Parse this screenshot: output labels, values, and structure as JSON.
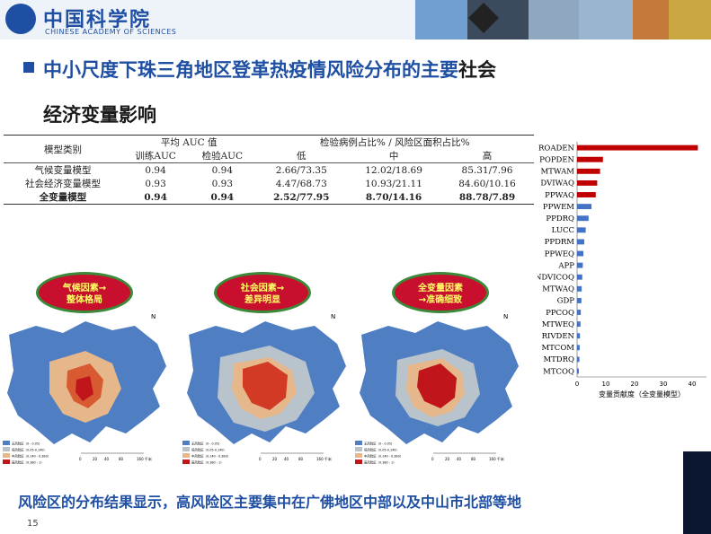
{
  "header": {
    "logo_cn": "中国科学院",
    "logo_en": "CHINESE ACADEMY OF SCIENCES"
  },
  "title": {
    "line1_blue": "中小尺度下珠三角地区登革热疫情风险分布的主要",
    "line1_black": "社会",
    "line2": "经济变量影响"
  },
  "table": {
    "header_model": "模型类别",
    "header_auc": "平均 AUC 值",
    "header_cases": "检验病例占比% / 风险区面积占比%",
    "sub_train": "训练AUC",
    "sub_test": "检验AUC",
    "sub_low": "低",
    "sub_mid": "中",
    "sub_high": "高",
    "rows": [
      {
        "name": "气候变量模型",
        "train": "0.94",
        "test": "0.94",
        "low": "2.66/73.35",
        "mid": "12.02/18.69",
        "high": "85.31/7.96"
      },
      {
        "name": "社会经济变量模型",
        "train": "0.93",
        "test": "0.93",
        "low": "4.47/68.73",
        "mid": "10.93/21.11",
        "high": "84.60/10.16"
      },
      {
        "name": "全变量模型",
        "train": "0.94",
        "test": "0.94",
        "low": "2.52/77.95",
        "mid": "8.70/14.16",
        "high": "88.78/7.89"
      }
    ]
  },
  "callouts": [
    {
      "line1": "气候因素→",
      "line2": "整体格局"
    },
    {
      "line1": "社会因素→",
      "line2": "差异明显"
    },
    {
      "line1": "全变量因素",
      "line2": "→准确细致"
    }
  ],
  "map_legend": [
    "无风险区（0 - 0.05）",
    "低风险区（0.05-0.140）",
    "中风险区（0.140 - 0.380）",
    "高风险区（0.380 - 1）"
  ],
  "map_scale": [
    "0",
    "20",
    "40",
    "80",
    "160 千米"
  ],
  "map_north": "N",
  "chart_data": {
    "type": "bar",
    "orientation": "horizontal",
    "categories": [
      "ROADEN",
      "POPDEN",
      "MTWAM",
      "DVIWAQ",
      "PPWAQ",
      "PPWEM",
      "PPDRQ",
      "LUCC",
      "PPDRM",
      "PPWEQ",
      "APP",
      "NDVICOQ",
      "MTWAQ",
      "GDP",
      "PPCOQ",
      "MTWEQ",
      "RIVDEN",
      "MTCOM",
      "MTDRQ",
      "MTCOQ"
    ],
    "values": [
      42,
      9,
      8,
      7,
      6.5,
      5,
      4,
      3,
      2.5,
      2.2,
      2,
      1.8,
      1.6,
      1.5,
      1.3,
      1.2,
      1.0,
      0.9,
      0.8,
      0.6
    ],
    "colors": [
      "#c00000",
      "#c00000",
      "#c00000",
      "#c00000",
      "#c00000",
      "#4472c4",
      "#4472c4",
      "#4472c4",
      "#4472c4",
      "#4472c4",
      "#4472c4",
      "#4472c4",
      "#4472c4",
      "#4472c4",
      "#4472c4",
      "#4472c4",
      "#4472c4",
      "#4472c4",
      "#4472c4",
      "#4472c4"
    ],
    "xticks": [
      "0",
      "10",
      "20",
      "30",
      "40"
    ],
    "xlim": [
      0,
      45
    ],
    "xlabel": "变量贡献度（全变量模型）"
  },
  "bottom_text": "风险区的分布结果显示，高风险区主要集中在广佛地区中部以及中山市北部等地",
  "page_number": "15"
}
